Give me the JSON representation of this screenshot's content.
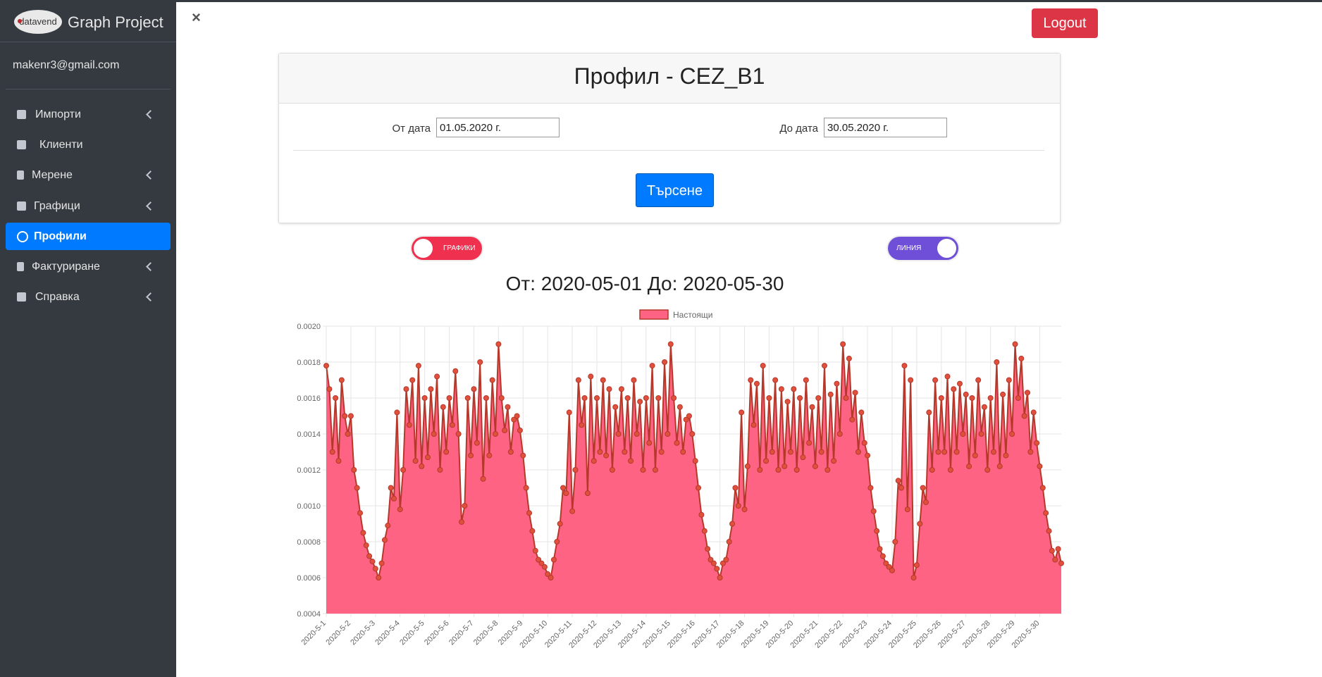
{
  "sidebar": {
    "brand_logo": "datavend",
    "brand": "Graph Project",
    "email": "makenr3@gmail.com",
    "menu": [
      "Импорти",
      "Клиенти",
      "Мерене",
      "Графици",
      "Профили",
      "Фактуриране",
      "Справка"
    ]
  },
  "close": "×",
  "logout": "Logout",
  "card": {
    "title": "Профил - CEZ_B1",
    "from_label": "От дата",
    "from_value": "01.05.2020 г.",
    "to_label": "До дата",
    "to_value": "30.05.2020 г.",
    "button": "Търсене"
  },
  "toggles": [
    "ГРАФИКИ",
    "ЛИНИЯ"
  ],
  "chart_data": {
    "type": "line",
    "fill": true,
    "title": "От: 2020-05-01 До: 2020-05-30",
    "grid": true,
    "legend": "top",
    "categories": [
      "2020-5-1",
      null,
      null,
      null,
      null,
      null,
      null,
      null,
      "2020-5-2",
      null,
      null,
      null,
      null,
      null,
      null,
      null,
      "2020-5-3",
      null,
      null,
      null,
      null,
      null,
      null,
      null,
      "2020-5-4",
      null,
      null,
      null,
      null,
      null,
      null,
      null,
      "2020-5-5",
      null,
      null,
      null,
      null,
      null,
      null,
      null,
      "2020-5-6",
      null,
      null,
      null,
      null,
      null,
      null,
      null,
      "2020-5-7",
      null,
      null,
      null,
      null,
      null,
      null,
      null,
      "2020-5-8",
      null,
      null,
      null,
      null,
      null,
      null,
      null,
      "2020-5-9",
      null,
      null,
      null,
      null,
      null,
      null,
      null,
      "2020-5-10",
      null,
      null,
      null,
      null,
      null,
      null,
      null,
      "2020-5-11",
      null,
      null,
      null,
      null,
      null,
      null,
      null,
      "2020-5-12",
      null,
      null,
      null,
      null,
      null,
      null,
      null,
      "2020-5-13",
      null,
      null,
      null,
      null,
      null,
      null,
      null,
      "2020-5-14",
      null,
      null,
      null,
      null,
      null,
      null,
      null,
      "2020-5-15",
      null,
      null,
      null,
      null,
      null,
      null,
      null,
      "2020-5-16",
      null,
      null,
      null,
      null,
      null,
      null,
      null,
      "2020-5-17",
      null,
      null,
      null,
      null,
      null,
      null,
      null,
      "2020-5-18",
      null,
      null,
      null,
      null,
      null,
      null,
      null,
      "2020-5-19",
      null,
      null,
      null,
      null,
      null,
      null,
      null,
      "2020-5-20",
      null,
      null,
      null,
      null,
      null,
      null,
      null,
      "2020-5-21",
      null,
      null,
      null,
      null,
      null,
      null,
      null,
      "2020-5-22",
      null,
      null,
      null,
      null,
      null,
      null,
      null,
      "2020-5-23",
      null,
      null,
      null,
      null,
      null,
      null,
      null,
      "2020-5-24",
      null,
      null,
      null,
      null,
      null,
      null,
      null,
      "2020-5-25",
      null,
      null,
      null,
      null,
      null,
      null,
      null,
      "2020-5-26",
      null,
      null,
      null,
      null,
      null,
      null,
      null,
      "2020-5-27",
      null,
      null,
      null,
      null,
      null,
      null,
      null,
      "2020-5-28",
      null,
      null,
      null,
      null,
      null,
      null,
      null,
      "2020-5-29",
      null,
      null,
      null,
      null,
      null,
      null,
      null,
      "2020-5-30",
      null,
      null,
      null,
      null,
      null,
      null,
      null
    ],
    "series": [
      {
        "name": "Настоящи",
        "color": "#ff6384",
        "line_color": "#b5382a",
        "point_color": "#e0503c",
        "values": [
          0.00178,
          0.00165,
          0.0013,
          0.0016,
          0.00125,
          0.0017,
          0.0015,
          0.0014,
          0.0015,
          0.0012,
          0.0011,
          0.00096,
          0.00085,
          0.00078,
          0.00072,
          0.00069,
          0.00065,
          0.0006,
          0.00068,
          0.00081,
          0.00089,
          0.0011,
          0.00104,
          0.00152,
          0.00098,
          0.0012,
          0.00165,
          0.00145,
          0.0017,
          0.00125,
          0.00178,
          0.00122,
          0.0016,
          0.00127,
          0.00165,
          0.0014,
          0.00172,
          0.0012,
          0.00155,
          0.0013,
          0.0016,
          0.00145,
          0.00175,
          0.0014,
          0.00091,
          0.001,
          0.0016,
          0.00128,
          0.00165,
          0.00135,
          0.0018,
          0.00115,
          0.0016,
          0.00128,
          0.0017,
          0.0014,
          0.0019,
          0.0016,
          0.00142,
          0.00155,
          0.0013,
          0.00148,
          0.0015,
          0.00142,
          0.00128,
          0.0011,
          0.00096,
          0.00086,
          0.00075,
          0.0007,
          0.00068,
          0.00066,
          0.00062,
          0.0006,
          0.0007,
          0.0008,
          0.0009,
          0.0011,
          0.00107,
          0.00152,
          0.00097,
          0.0012,
          0.0017,
          0.00145,
          0.0016,
          0.00107,
          0.00172,
          0.00125,
          0.0016,
          0.0013,
          0.0017,
          0.00128,
          0.00165,
          0.0012,
          0.00155,
          0.0014,
          0.00165,
          0.0013,
          0.0016,
          0.00125,
          0.0017,
          0.0014,
          0.00158,
          0.0012,
          0.0016,
          0.00135,
          0.00178,
          0.0012,
          0.0016,
          0.0013,
          0.0018,
          0.0014,
          0.0019,
          0.0016,
          0.00135,
          0.00155,
          0.0013,
          0.00148,
          0.0015,
          0.0014,
          0.00125,
          0.0011,
          0.00095,
          0.00086,
          0.00076,
          0.0007,
          0.00068,
          0.00065,
          0.0006,
          0.00068,
          0.0007,
          0.0008,
          0.0009,
          0.0011,
          0.001,
          0.00152,
          0.00098,
          0.00122,
          0.0017,
          0.00145,
          0.00168,
          0.0012,
          0.00178,
          0.00125,
          0.0016,
          0.0013,
          0.0017,
          0.0012,
          0.00165,
          0.00122,
          0.00158,
          0.0013,
          0.00165,
          0.0012,
          0.0016,
          0.00127,
          0.0017,
          0.00135,
          0.00155,
          0.00122,
          0.0016,
          0.0013,
          0.00178,
          0.0012,
          0.00162,
          0.00125,
          0.00168,
          0.0014,
          0.0019,
          0.0016,
          0.00182,
          0.00148,
          0.00163,
          0.0013,
          0.00152,
          0.00135,
          0.00128,
          0.0011,
          0.00097,
          0.00086,
          0.00076,
          0.00072,
          0.00068,
          0.00066,
          0.00064,
          0.0008,
          0.00114,
          0.0011,
          0.00178,
          0.00098,
          0.0017,
          0.0006,
          0.00067,
          0.0009,
          0.0011,
          0.00102,
          0.00152,
          0.0012,
          0.0017,
          0.0013,
          0.0016,
          0.0013,
          0.00172,
          0.0012,
          0.00165,
          0.0013,
          0.00168,
          0.0014,
          0.00162,
          0.00122,
          0.0016,
          0.00128,
          0.0017,
          0.0014,
          0.00155,
          0.0012,
          0.0016,
          0.0013,
          0.0018,
          0.00122,
          0.00162,
          0.00128,
          0.0017,
          0.0014,
          0.0019,
          0.0016,
          0.00182,
          0.0015,
          0.00163,
          0.0013,
          0.00152,
          0.00135,
          0.00122,
          0.0011,
          0.00096,
          0.00086,
          0.00075,
          0.0007,
          0.00076,
          0.00068
        ]
      }
    ],
    "ylim": [
      0.0004,
      0.002
    ],
    "yticks": [
      0.0004,
      0.0006,
      0.0008,
      {
        "value": 0.001,
        "label": "0.0010"
      },
      0.0012,
      0.0014,
      0.0016,
      0.0018,
      {
        "value": 0.002,
        "label": "0.0020"
      }
    ]
  }
}
